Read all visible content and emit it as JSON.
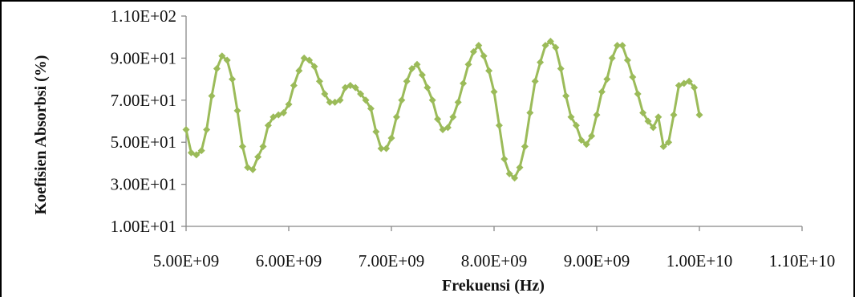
{
  "chart_data": {
    "type": "line",
    "title": "",
    "xlabel": "Frekuensi (Hz)",
    "ylabel": "Koefisien Absorbsi (%)",
    "xlim": [
      5000000000,
      11000000000
    ],
    "ylim": [
      10,
      110
    ],
    "x_ticks": [
      {
        "value": 5000000000,
        "label": "5.00E+09"
      },
      {
        "value": 6000000000,
        "label": "6.00E+09"
      },
      {
        "value": 7000000000,
        "label": "7.00E+09"
      },
      {
        "value": 8000000000,
        "label": "8.00E+09"
      },
      {
        "value": 9000000000,
        "label": "9.00E+09"
      },
      {
        "value": 10000000000,
        "label": "1.00E+10"
      },
      {
        "value": 11000000000,
        "label": "1.10E+10"
      }
    ],
    "y_ticks": [
      {
        "value": 10,
        "label": "1.00E+01"
      },
      {
        "value": 30,
        "label": "3.00E+01"
      },
      {
        "value": 50,
        "label": "5.00E+01"
      },
      {
        "value": 70,
        "label": "7.00E+01"
      },
      {
        "value": 90,
        "label": "9.00E+01"
      },
      {
        "value": 110,
        "label": "1.10E+02"
      }
    ],
    "grid": false,
    "legend": false,
    "series": [
      {
        "color": "#9bbb59",
        "marker": "diamond",
        "x": [
          5000000000,
          5050000000,
          5100000000,
          5150000000,
          5200000000,
          5250000000,
          5300000000,
          5350000000,
          5400000000,
          5450000000,
          5500000000,
          5550000000,
          5600000000,
          5650000000,
          5700000000,
          5750000000,
          5800000000,
          5850000000,
          5900000000,
          5950000000,
          6000000000,
          6050000000,
          6100000000,
          6150000000,
          6200000000,
          6250000000,
          6300000000,
          6350000000,
          6400000000,
          6450000000,
          6500000000,
          6550000000,
          6600000000,
          6650000000,
          6700000000,
          6750000000,
          6800000000,
          6850000000,
          6900000000,
          6950000000,
          7000000000,
          7050000000,
          7100000000,
          7150000000,
          7200000000,
          7250000000,
          7300000000,
          7350000000,
          7400000000,
          7450000000,
          7500000000,
          7550000000,
          7600000000,
          7650000000,
          7700000000,
          7750000000,
          7800000000,
          7850000000,
          7900000000,
          7950000000,
          8000000000,
          8050000000,
          8100000000,
          8150000000,
          8200000000,
          8250000000,
          8300000000,
          8350000000,
          8400000000,
          8450000000,
          8500000000,
          8550000000,
          8600000000,
          8650000000,
          8700000000,
          8750000000,
          8800000000,
          8850000000,
          8900000000,
          8950000000,
          9000000000,
          9050000000,
          9100000000,
          9150000000,
          9200000000,
          9250000000,
          9300000000,
          9350000000,
          9400000000,
          9450000000,
          9500000000,
          9550000000,
          9600000000,
          9650000000,
          9700000000,
          9750000000,
          9800000000,
          9850000000,
          9900000000,
          9950000000,
          10000000000
        ],
        "y": [
          56,
          45,
          44,
          46,
          56,
          72,
          85,
          91,
          89,
          80,
          65,
          48,
          38,
          37,
          43,
          48,
          58,
          62,
          63,
          64,
          68,
          77,
          84,
          90,
          89,
          86,
          79,
          73,
          69,
          69,
          70,
          76,
          77,
          76,
          73,
          70,
          66,
          55,
          47,
          47,
          52,
          62,
          70,
          79,
          85,
          87,
          82,
          76,
          70,
          61,
          56,
          57,
          62,
          69,
          78,
          87,
          93,
          96,
          91,
          84,
          74,
          58,
          42,
          35,
          33,
          38,
          48,
          64,
          79,
          88,
          96,
          98,
          95,
          85,
          72,
          62,
          58,
          51,
          49,
          53,
          63,
          74,
          80,
          90,
          96,
          96,
          89,
          81,
          73,
          64,
          60,
          57,
          62,
          48,
          50,
          63,
          77,
          78,
          79,
          76,
          63
        ]
      }
    ]
  }
}
